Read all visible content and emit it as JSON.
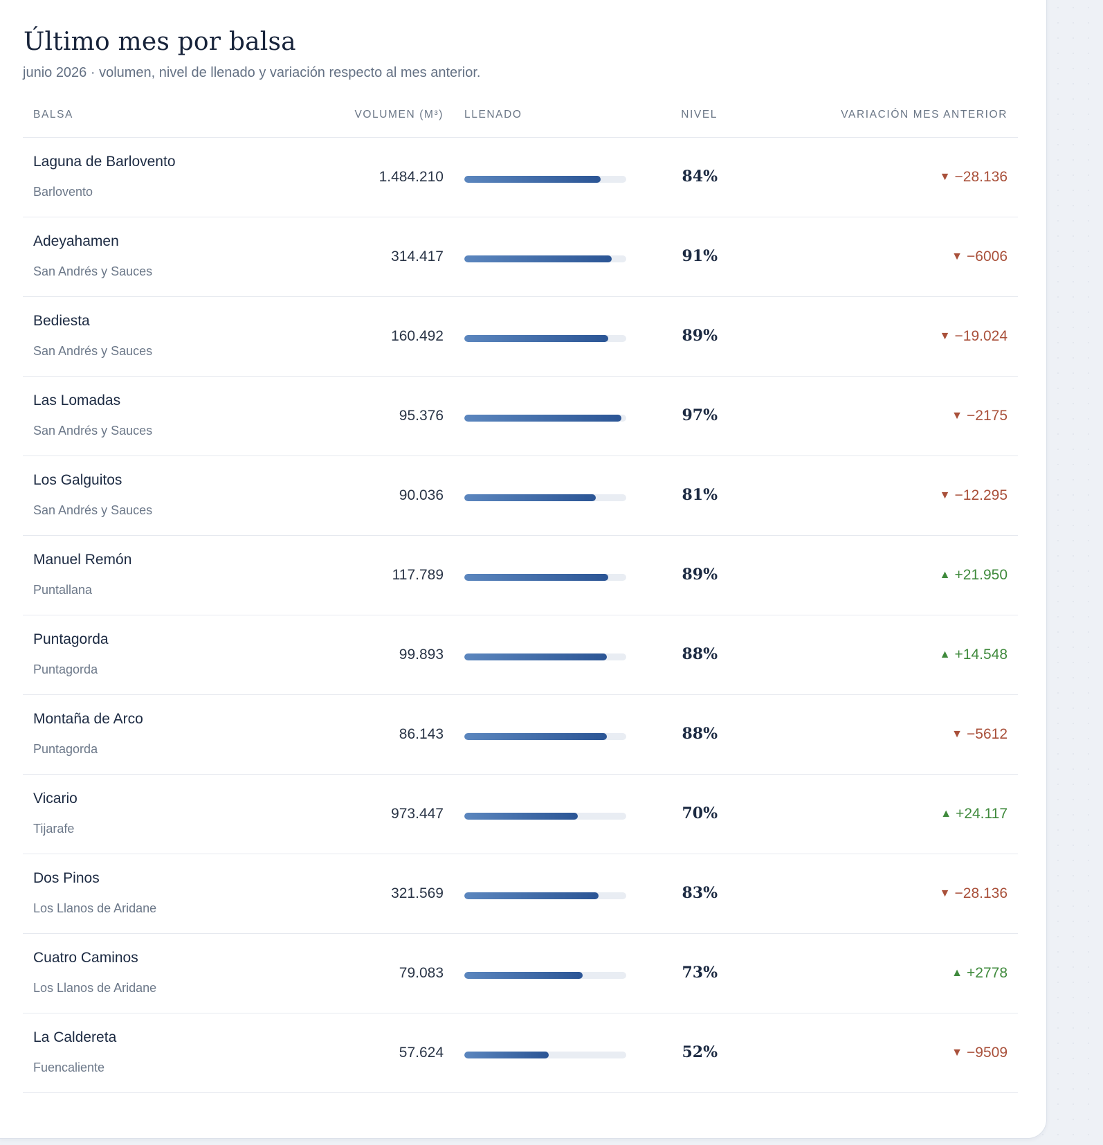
{
  "header": {
    "title": "Último mes por balsa",
    "subtitle": "junio 2026 · volumen, nivel de llenado y variación respecto al mes anterior."
  },
  "columns": {
    "balsa": "BALSA",
    "volumen": "VOLUMEN (M³)",
    "llenado": "LLENADO",
    "nivel": "NIVEL",
    "variacion": "VARIACIÓN MES ANTERIOR"
  },
  "colors": {
    "bar_start": "#5b86be",
    "bar_end": "#2b5595",
    "negative": "#a9503a",
    "positive": "#3f8a3c"
  },
  "rows": [
    {
      "name": "Laguna de Barlovento",
      "municipality": "Barlovento",
      "volume": "1.484.210",
      "fill_pct": 84,
      "level": "84%",
      "direction": "down",
      "icon": "triangle-down-icon",
      "glyph": "▼",
      "delta": "−28.136"
    },
    {
      "name": "Adeyahamen",
      "municipality": "San Andrés y Sauces",
      "volume": "314.417",
      "fill_pct": 91,
      "level": "91%",
      "direction": "down",
      "icon": "triangle-down-icon",
      "glyph": "▼",
      "delta": "−6006"
    },
    {
      "name": "Bediesta",
      "municipality": "San Andrés y Sauces",
      "volume": "160.492",
      "fill_pct": 89,
      "level": "89%",
      "direction": "down",
      "icon": "triangle-down-icon",
      "glyph": "▼",
      "delta": "−19.024"
    },
    {
      "name": "Las Lomadas",
      "municipality": "San Andrés y Sauces",
      "volume": "95.376",
      "fill_pct": 97,
      "level": "97%",
      "direction": "down",
      "icon": "triangle-down-icon",
      "glyph": "▼",
      "delta": "−2175"
    },
    {
      "name": "Los Galguitos",
      "municipality": "San Andrés y Sauces",
      "volume": "90.036",
      "fill_pct": 81,
      "level": "81%",
      "direction": "down",
      "icon": "triangle-down-icon",
      "glyph": "▼",
      "delta": "−12.295"
    },
    {
      "name": "Manuel Remón",
      "municipality": "Puntallana",
      "volume": "117.789",
      "fill_pct": 89,
      "level": "89%",
      "direction": "up",
      "icon": "triangle-up-icon",
      "glyph": "▲",
      "delta": "+21.950"
    },
    {
      "name": "Puntagorda",
      "municipality": "Puntagorda",
      "volume": "99.893",
      "fill_pct": 88,
      "level": "88%",
      "direction": "up",
      "icon": "triangle-up-icon",
      "glyph": "▲",
      "delta": "+14.548"
    },
    {
      "name": "Montaña de Arco",
      "municipality": "Puntagorda",
      "volume": "86.143",
      "fill_pct": 88,
      "level": "88%",
      "direction": "down",
      "icon": "triangle-down-icon",
      "glyph": "▼",
      "delta": "−5612"
    },
    {
      "name": "Vicario",
      "municipality": "Tijarafe",
      "volume": "973.447",
      "fill_pct": 70,
      "level": "70%",
      "direction": "up",
      "icon": "triangle-up-icon",
      "glyph": "▲",
      "delta": "+24.117"
    },
    {
      "name": "Dos Pinos",
      "municipality": "Los Llanos de Aridane",
      "volume": "321.569",
      "fill_pct": 83,
      "level": "83%",
      "direction": "down",
      "icon": "triangle-down-icon",
      "glyph": "▼",
      "delta": "−28.136"
    },
    {
      "name": "Cuatro Caminos",
      "municipality": "Los Llanos de Aridane",
      "volume": "79.083",
      "fill_pct": 73,
      "level": "73%",
      "direction": "up",
      "icon": "triangle-up-icon",
      "glyph": "▲",
      "delta": "+2778"
    },
    {
      "name": "La Caldereta",
      "municipality": "Fuencaliente",
      "volume": "57.624",
      "fill_pct": 52,
      "level": "52%",
      "direction": "down",
      "icon": "triangle-down-icon",
      "glyph": "▼",
      "delta": "−9509"
    }
  ]
}
